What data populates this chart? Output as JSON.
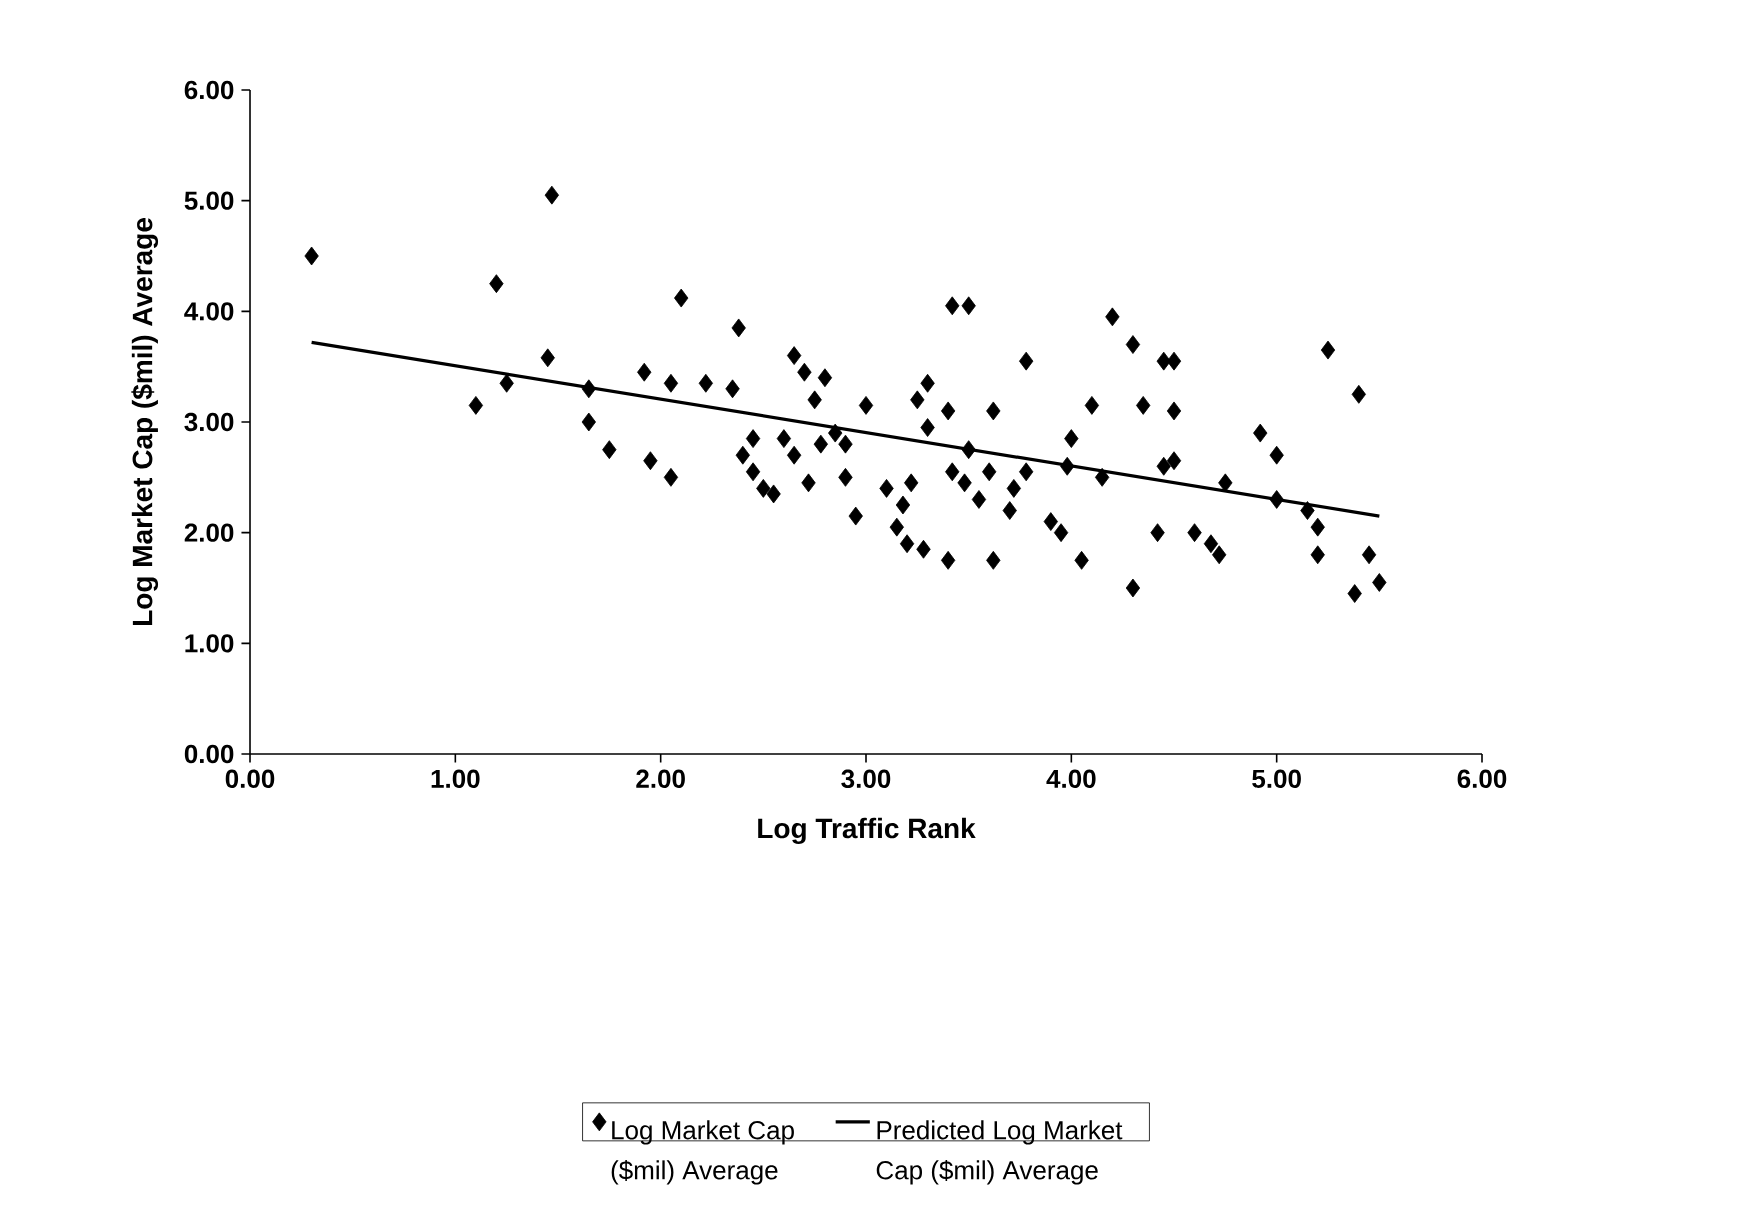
{
  "chart_data": {
    "type": "scatter",
    "xlabel": "Log Traffic Rank",
    "ylabel": "Log Market Cap ($mil) Average",
    "xlim": [
      0,
      6
    ],
    "ylim": [
      0,
      6
    ],
    "xticks": [
      {
        "value": 0,
        "label": "0.00"
      },
      {
        "value": 1,
        "label": "1.00"
      },
      {
        "value": 2,
        "label": "2.00"
      },
      {
        "value": 3,
        "label": "3.00"
      },
      {
        "value": 4,
        "label": "4.00"
      },
      {
        "value": 5,
        "label": "5.00"
      },
      {
        "value": 6,
        "label": "6.00"
      }
    ],
    "yticks": [
      {
        "value": 0,
        "label": "0.00"
      },
      {
        "value": 1,
        "label": "1.00"
      },
      {
        "value": 2,
        "label": "2.00"
      },
      {
        "value": 3,
        "label": "3.00"
      },
      {
        "value": 4,
        "label": "4.00"
      },
      {
        "value": 5,
        "label": "5.00"
      },
      {
        "value": 6,
        "label": "6.00"
      }
    ],
    "legend": "bottom",
    "grid": false,
    "series": [
      {
        "name": "Log Market Cap ($mil) Average",
        "marker": "diamond",
        "color": "#000000",
        "x": [
          0.3,
          1.1,
          1.2,
          1.25,
          1.45,
          1.47,
          1.65,
          1.65,
          1.75,
          1.92,
          1.95,
          2.05,
          2.05,
          2.1,
          2.22,
          2.35,
          2.38,
          2.4,
          2.45,
          2.45,
          2.5,
          2.55,
          2.6,
          2.65,
          2.65,
          2.7,
          2.72,
          2.75,
          2.78,
          2.8,
          2.85,
          2.9,
          2.9,
          2.95,
          3.0,
          3.1,
          3.15,
          3.18,
          3.2,
          3.22,
          3.25,
          3.28,
          3.3,
          3.3,
          3.4,
          3.4,
          3.42,
          3.42,
          3.48,
          3.5,
          3.5,
          3.55,
          3.6,
          3.62,
          3.62,
          3.7,
          3.72,
          3.78,
          3.78,
          3.9,
          3.95,
          3.98,
          4.0,
          4.05,
          4.1,
          4.15,
          4.2,
          4.3,
          4.3,
          4.35,
          4.42,
          4.45,
          4.5,
          4.5,
          4.45,
          4.5,
          4.6,
          4.68,
          4.72,
          4.75,
          4.92,
          5.0,
          5.0,
          5.15,
          5.2,
          5.25,
          5.2,
          5.38,
          5.4,
          5.45,
          5.5
        ],
        "values": [
          4.5,
          3.15,
          4.25,
          3.35,
          3.58,
          5.05,
          3.0,
          3.3,
          2.75,
          3.45,
          2.65,
          2.5,
          3.35,
          4.12,
          3.35,
          3.3,
          3.85,
          2.7,
          2.55,
          2.85,
          2.4,
          2.35,
          2.85,
          2.7,
          3.6,
          3.45,
          2.45,
          3.2,
          2.8,
          3.4,
          2.9,
          2.8,
          2.5,
          2.15,
          3.15,
          2.4,
          2.05,
          2.25,
          1.9,
          2.45,
          3.2,
          1.85,
          3.35,
          2.95,
          1.75,
          3.1,
          4.05,
          2.55,
          2.45,
          4.05,
          2.75,
          2.3,
          2.55,
          3.1,
          1.75,
          2.2,
          2.4,
          3.55,
          2.55,
          2.1,
          2.0,
          2.6,
          2.85,
          1.75,
          3.15,
          2.5,
          3.95,
          1.5,
          3.7,
          3.15,
          2.0,
          3.55,
          3.55,
          3.1,
          2.6,
          2.65,
          2.0,
          1.9,
          1.8,
          2.45,
          2.9,
          2.7,
          2.3,
          2.2,
          1.8,
          3.65,
          2.05,
          1.45,
          3.25,
          1.8,
          1.55
        ]
      },
      {
        "name": "Predicted Log Market Cap ($mil) Average",
        "type": "line",
        "marker": "none",
        "line_style": "solid",
        "color": "#000000",
        "x": [
          0.3,
          5.5
        ],
        "values": [
          3.72,
          2.15
        ]
      }
    ]
  }
}
